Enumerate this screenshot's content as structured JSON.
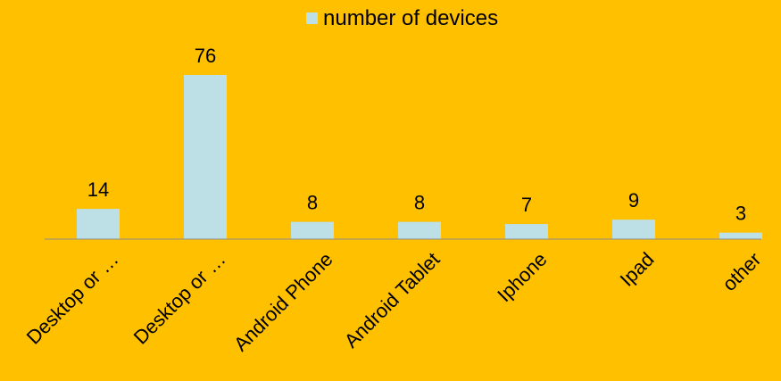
{
  "chart_data": {
    "type": "bar",
    "categories": [
      "Desktop or …",
      "Desktop or …",
      "Android Phone",
      "Android Tablet",
      "Iphone",
      "Ipad",
      "other"
    ],
    "series": [
      {
        "name": "number of devices",
        "values": [
          14,
          76,
          8,
          8,
          7,
          9,
          3
        ],
        "color": "#BDE0E6"
      }
    ],
    "ylim": [
      0,
      76
    ],
    "grid": false,
    "legend_position": "top-center",
    "data_labels": true
  },
  "colors": {
    "background": "#FFC000",
    "bar": "#BDE0E6",
    "axis": "#8C8C8C"
  }
}
